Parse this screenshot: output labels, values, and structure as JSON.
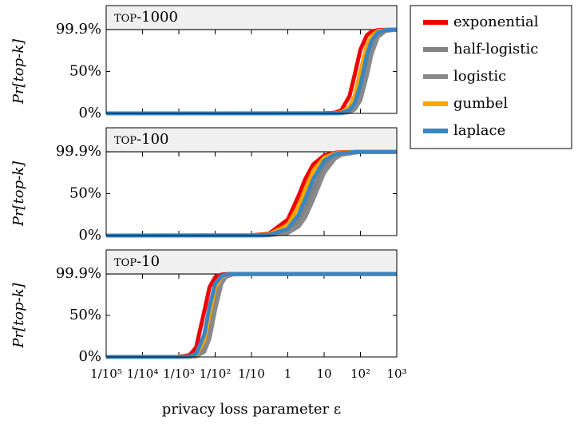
{
  "chart_data": [
    {
      "type": "line",
      "title": "top-1000",
      "ylabel": "Pr[top-k]",
      "xscale": "log",
      "xlim": [
        1e-05,
        1000
      ],
      "ylim": [
        0,
        100
      ],
      "yticks": [
        {
          "value": 0,
          "label": "0%"
        },
        {
          "value": 50,
          "label": "50%"
        },
        {
          "value": 99.9,
          "label": "99.9%"
        }
      ],
      "x": [
        1e-05,
        10,
        20,
        30,
        50,
        70,
        100,
        150,
        200,
        300,
        500,
        1000
      ],
      "series": [
        {
          "name": "exponential",
          "color": "#f00000",
          "values": [
            0,
            0.1,
            0.9,
            3.9,
            20.7,
            46.8,
            76.2,
            93.2,
            97.4,
            99.3,
            99.8,
            99.9
          ]
        },
        {
          "name": "half-logistic",
          "color": "#828282",
          "values": [
            0,
            0,
            0.1,
            0.3,
            2.1,
            6.7,
            20.9,
            54,
            76,
            93.6,
            98.9,
            99.9
          ]
        },
        {
          "name": "logistic",
          "color": "#8a8a8a",
          "values": [
            0,
            0,
            0.1,
            0.2,
            1.5,
            4.9,
            15.8,
            45,
            70,
            91,
            98.5,
            99.9
          ]
        },
        {
          "name": "gumbel",
          "color": "#ffa500",
          "values": [
            0,
            0,
            0.3,
            1.3,
            7.6,
            21.6,
            50,
            81,
            92,
            98,
            99.6,
            99.9
          ]
        },
        {
          "name": "laplace",
          "color": "#3a86c0",
          "values": [
            0,
            0,
            0.2,
            0.7,
            3.9,
            12.3,
            33.8,
            69,
            86,
            96.4,
            99.4,
            99.9
          ]
        }
      ]
    },
    {
      "type": "line",
      "title": "top-100",
      "ylabel": "Pr[top-k]",
      "xscale": "log",
      "xlim": [
        1e-05,
        1000
      ],
      "ylim": [
        0,
        100
      ],
      "yticks": [
        {
          "value": 0,
          "label": "0%"
        },
        {
          "value": 50,
          "label": "50%"
        },
        {
          "value": 99.9,
          "label": "99.9%"
        }
      ],
      "x": [
        1e-05,
        0.1,
        0.3,
        1,
        2,
        3,
        5,
        10,
        20,
        30,
        100,
        1000
      ],
      "series": [
        {
          "color": "#f00000",
          "values": [
            0,
            0.25,
            2.1,
            19,
            47.8,
            67,
            84.8,
            95.6,
            98.8,
            99.4,
            99.9,
            99.9
          ]
        },
        {
          "color": "#828282",
          "values": [
            0,
            0.05,
            0.4,
            5,
            17,
            31,
            55,
            83,
            95,
            97.6,
            99.9,
            99.9
          ]
        },
        {
          "color": "#8a8a8a",
          "values": [
            0,
            0,
            0.2,
            3.1,
            11,
            21.6,
            43,
            75,
            92,
            96.3,
            99.8,
            99.9
          ]
        },
        {
          "color": "#ffa500",
          "values": [
            0,
            0.15,
            1.3,
            12.4,
            35.7,
            55,
            77,
            93,
            98,
            99.1,
            99.9,
            99.9
          ]
        },
        {
          "color": "#3a86c0",
          "values": [
            0,
            0.1,
            0.8,
            7.9,
            25,
            43,
            67,
            89,
            97,
            98.5,
            99.9,
            99.9
          ]
        }
      ]
    },
    {
      "type": "line",
      "title": "top-10",
      "ylabel": "Pr[top-k]",
      "xlabel": "privacy loss parameter ε",
      "xscale": "log",
      "xlim": [
        1e-05,
        1000
      ],
      "ylim": [
        0,
        100
      ],
      "xticks": [
        {
          "value": 1e-05,
          "label": "1/10⁵"
        },
        {
          "value": 0.0001,
          "label": "1/10⁴"
        },
        {
          "value": 0.001,
          "label": "1/10³"
        },
        {
          "value": 0.01,
          "label": "1/10²"
        },
        {
          "value": 0.1,
          "label": "1/10"
        },
        1,
        10,
        {
          "value": 100,
          "label": "10²"
        },
        {
          "value": 1000,
          "label": "10³"
        }
      ],
      "yticks": [
        {
          "value": 0,
          "label": "0%"
        },
        {
          "value": 50,
          "label": "50%"
        },
        {
          "value": 99.9,
          "label": "99.9%"
        }
      ],
      "x": [
        1e-05,
        0.001,
        0.002,
        0.003,
        0.005,
        0.007,
        0.01,
        0.015,
        0.02,
        0.03,
        0.1,
        1000
      ],
      "series": [
        {
          "color": "#f00000",
          "values": [
            0,
            0.1,
            2.2,
            11.6,
            54.7,
            83.9,
            96,
            99.2,
            99.7,
            99.9,
            99.9,
            99.9
          ]
        },
        {
          "color": "#828282",
          "values": [
            0,
            0,
            0.25,
            1.4,
            11.7,
            36.5,
            73,
            94,
            98.1,
            99.6,
            99.9,
            99.9
          ]
        },
        {
          "color": "#8a8a8a",
          "values": [
            0,
            0,
            0.1,
            0.7,
            6.2,
            22.2,
            57,
            88.6,
            96.4,
            99.3,
            99.9,
            99.9
          ]
        },
        {
          "color": "#ffa500",
          "values": [
            0,
            0,
            0.5,
            2.6,
            19.6,
            51,
            83,
            96.6,
            99,
            99.8,
            99.9,
            99.9
          ]
        },
        {
          "color": "#3a86c0",
          "values": [
            0,
            0,
            0.7,
            3.8,
            26.6,
            61,
            88,
            97.6,
            99.3,
            99.8,
            99.9,
            99.9
          ]
        }
      ]
    }
  ]
}
